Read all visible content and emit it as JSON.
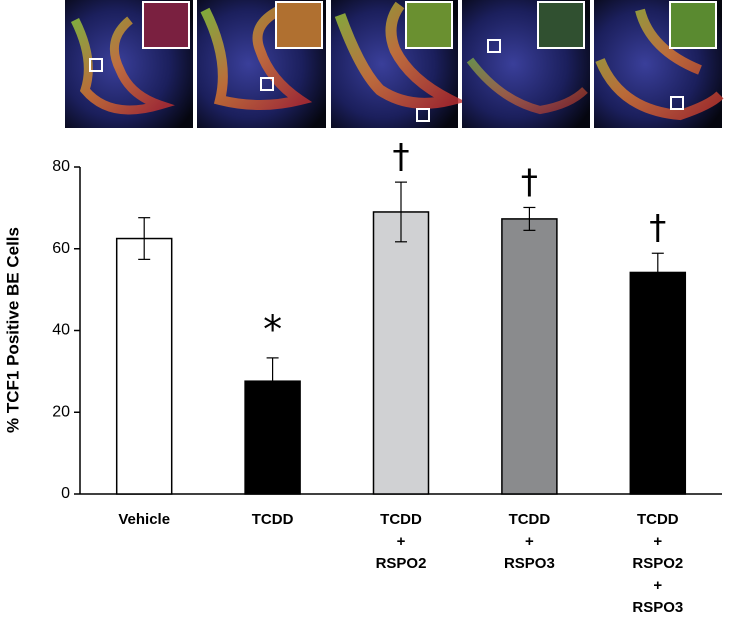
{
  "chart_data": {
    "type": "bar",
    "y_label": "% TCF1 Positive BE Cells",
    "categories": [
      [
        "Vehicle"
      ],
      [
        "TCDD"
      ],
      [
        "TCDD",
        "+",
        "RSPO2"
      ],
      [
        "TCDD",
        "+",
        "RSPO3"
      ],
      [
        "TCDD",
        "+",
        "RSPO2",
        "+",
        "RSPO3"
      ]
    ],
    "values": [
      62.5,
      27.6,
      69,
      67.3,
      54.2
    ],
    "errors": [
      5.1,
      5.7,
      7.3,
      2.8,
      4.7
    ],
    "colors": [
      "#ffffff",
      "#000000",
      "#d0d1d3",
      "#8a8b8d",
      "#000000"
    ],
    "annotations": [
      null,
      "*",
      "†",
      "†",
      "†"
    ],
    "ylim": [
      0,
      80
    ],
    "yticks": [
      0,
      20,
      40,
      60,
      80
    ]
  }
}
